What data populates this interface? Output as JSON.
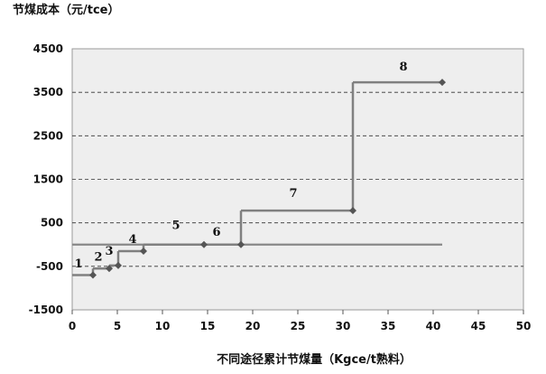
{
  "chart_data": {
    "type": "line",
    "subtype": "stepped cost curve",
    "title": "",
    "ylabel": "节煤成本（元/tce）",
    "xlabel": "不同途径累计节煤量（Kgce/t熟料）",
    "xlim": [
      0,
      50
    ],
    "ylim": [
      -1500,
      4500
    ],
    "x_ticks": [
      "0",
      "5",
      "10",
      "15",
      "20",
      "25",
      "30",
      "35",
      "40",
      "45",
      "50"
    ],
    "y_ticks": [
      "-1500",
      "-500",
      "500",
      "1500",
      "2500",
      "3500",
      "4500"
    ],
    "grid": "dashed horizontal",
    "colors": {
      "line": "#808080",
      "marker": "#555555",
      "plot_bg": "#eeeeee",
      "zero_line": "#888888"
    },
    "series": [
      {
        "points": [
          {
            "x": 0,
            "y": -700
          },
          {
            "x": 2.3,
            "y": -700
          },
          {
            "x": 2.3,
            "y": -550
          },
          {
            "x": 4.1,
            "y": -550
          },
          {
            "x": 4.1,
            "y": -480
          },
          {
            "x": 5.1,
            "y": -480
          },
          {
            "x": 5.1,
            "y": -150
          },
          {
            "x": 7.9,
            "y": -150
          },
          {
            "x": 7.9,
            "y": 0
          },
          {
            "x": 14.6,
            "y": 0
          },
          {
            "x": 18.7,
            "y": 0
          },
          {
            "x": 18.7,
            "y": 780
          },
          {
            "x": 31.1,
            "y": 780
          },
          {
            "x": 31.1,
            "y": 3730
          },
          {
            "x": 41.0,
            "y": 3730
          }
        ],
        "markers": [
          {
            "x": 2.3,
            "y": -700
          },
          {
            "x": 4.1,
            "y": -550
          },
          {
            "x": 5.1,
            "y": -480
          },
          {
            "x": 7.9,
            "y": -150
          },
          {
            "x": 14.6,
            "y": 0
          },
          {
            "x": 18.7,
            "y": 0
          },
          {
            "x": 31.1,
            "y": 780
          },
          {
            "x": 41.0,
            "y": 3730
          }
        ]
      }
    ],
    "zero_line": {
      "x_start": 0,
      "x_end": 41.0,
      "y": 0
    },
    "annotations": [
      {
        "text": "1",
        "x": 0.7,
        "y": -520
      },
      {
        "text": "2",
        "x": 2.9,
        "y": -370
      },
      {
        "text": "3",
        "x": 4.1,
        "y": -230
      },
      {
        "text": "4",
        "x": 6.7,
        "y": 40
      },
      {
        "text": "5",
        "x": 11.5,
        "y": 360
      },
      {
        "text": "6",
        "x": 16.0,
        "y": 200
      },
      {
        "text": "7",
        "x": 24.5,
        "y": 1090
      },
      {
        "text": "8",
        "x": 36.7,
        "y": 4000
      }
    ]
  }
}
